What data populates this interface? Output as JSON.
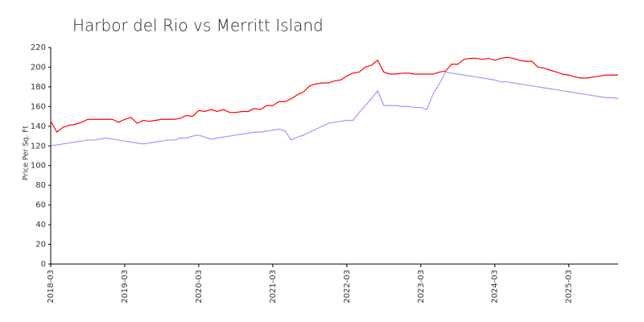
{
  "chart_data": {
    "type": "line",
    "title": "Harbor del Rio vs Merritt Island",
    "y_label": "Price Per Sq. Ft",
    "x": [
      "2018-03",
      "2018-04",
      "2018-05",
      "2018-06",
      "2018-07",
      "2018-08",
      "2018-09",
      "2018-10",
      "2018-11",
      "2018-12",
      "2019-01",
      "2019-02",
      "2019-03",
      "2019-04",
      "2019-05",
      "2019-06",
      "2019-07",
      "2019-08",
      "2019-09",
      "2019-10",
      "2019-11",
      "2019-12",
      "2020-01",
      "2020-02",
      "2020-03",
      "2020-04",
      "2020-05",
      "2020-06",
      "2020-07",
      "2020-08",
      "2020-09",
      "2020-10",
      "2020-11",
      "2020-12",
      "2021-01",
      "2021-02",
      "2021-03",
      "2021-04",
      "2021-05",
      "2021-06",
      "2021-07",
      "2021-08",
      "2021-09",
      "2021-10",
      "2021-11",
      "2021-12",
      "2022-01",
      "2022-02",
      "2022-03",
      "2022-04",
      "2022-05",
      "2022-06",
      "2022-07",
      "2022-08",
      "2022-09",
      "2022-10",
      "2022-11",
      "2022-12",
      "2023-01",
      "2023-02",
      "2023-03",
      "2023-04",
      "2023-05",
      "2023-06",
      "2023-07",
      "2023-08",
      "2023-09",
      "2023-10",
      "2023-11",
      "2023-12",
      "2024-01",
      "2024-02",
      "2024-03",
      "2024-04",
      "2024-05",
      "2024-06",
      "2024-07",
      "2024-08",
      "2024-09",
      "2024-10",
      "2024-11",
      "2024-12",
      "2025-01",
      "2025-02",
      "2025-03",
      "2025-04",
      "2025-05",
      "2025-06",
      "2025-07",
      "2025-08",
      "2025-09",
      "2025-10",
      "2025-11"
    ],
    "series": [
      {
        "color": "#ff0000",
        "values": [
          145,
          134,
          139,
          141,
          142,
          144,
          147,
          147,
          147,
          147,
          147,
          144,
          147,
          149,
          143,
          146,
          145,
          146,
          147,
          147,
          147,
          148,
          151,
          150,
          156,
          155,
          157,
          155,
          157,
          154,
          154,
          155,
          155,
          158,
          157,
          161,
          161,
          165,
          165,
          168,
          172,
          175,
          181,
          183,
          184,
          184,
          186,
          187,
          191,
          194,
          195,
          200,
          202,
          207,
          195,
          193,
          193,
          194,
          194,
          193,
          193,
          193,
          193,
          195,
          196,
          203,
          203,
          208,
          209,
          209,
          208,
          209,
          207,
          209,
          210,
          209,
          207,
          206,
          206,
          200,
          199,
          197,
          195,
          193,
          192,
          190,
          189,
          189,
          190,
          191,
          192,
          192,
          192
        ]
      },
      {
        "color": "#9999ff",
        "values": [
          120,
          121,
          122,
          123,
          124,
          125,
          126,
          126,
          127,
          128,
          127,
          126,
          125,
          124,
          123,
          122,
          123,
          124,
          125,
          126,
          126,
          128,
          128,
          130,
          131,
          129,
          127,
          128,
          129,
          130,
          131,
          132,
          133,
          134,
          134,
          135,
          136,
          137,
          135,
          126,
          129,
          131,
          134,
          137,
          140,
          143,
          144,
          145,
          146,
          146,
          154,
          161,
          168,
          176,
          161,
          161,
          161,
          160,
          160,
          159,
          159,
          157,
          173,
          183,
          195,
          194,
          193,
          192,
          191,
          190,
          189,
          188,
          187,
          185,
          185,
          184,
          183,
          182,
          181,
          180,
          179,
          178,
          177,
          176,
          175,
          174,
          173,
          172,
          171,
          170,
          169,
          169,
          168
        ]
      }
    ],
    "xticks": [
      "2018-03",
      "2019-03",
      "2020-03",
      "2021-03",
      "2022-03",
      "2023-03",
      "2024-03",
      "2025-03"
    ],
    "ylim": [
      0,
      220
    ],
    "yticks": [
      0,
      20,
      40,
      60,
      80,
      100,
      120,
      140,
      160,
      180,
      200,
      220
    ],
    "grid": false
  }
}
